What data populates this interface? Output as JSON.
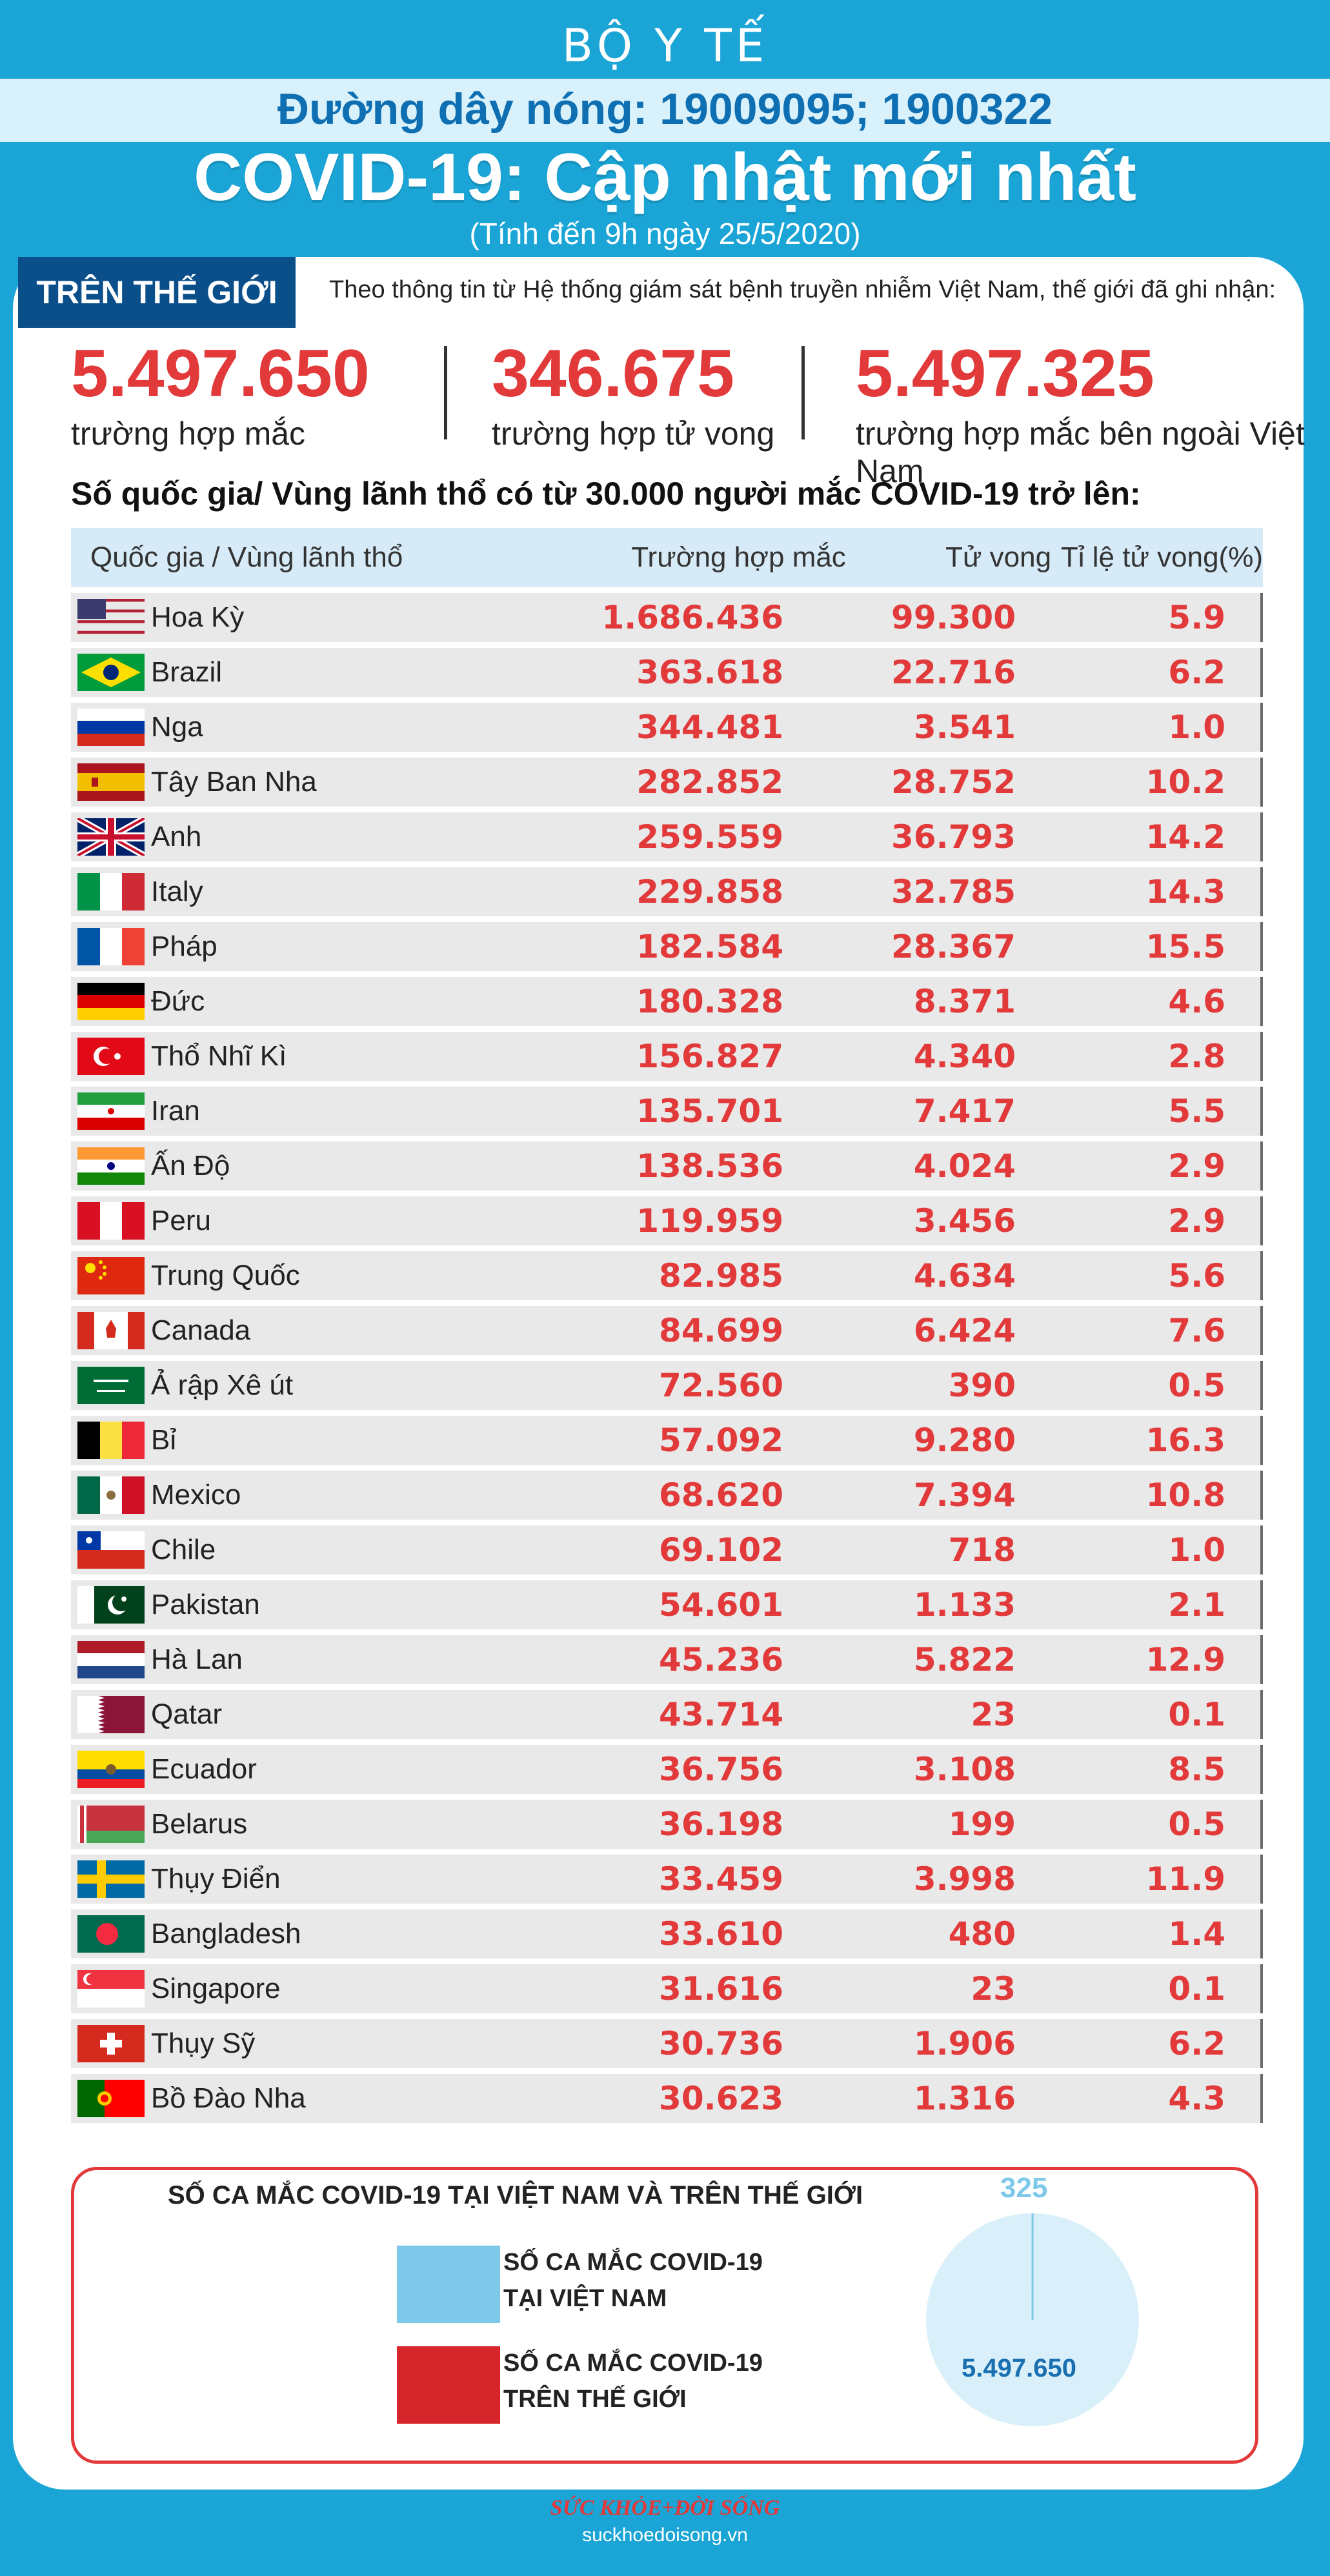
{
  "header": {
    "brand": "BỘ Y TẾ",
    "hotline": "Đường dây nóng: 19009095; 1900322",
    "title": "COVID-19: Cập nhật mới nhất",
    "date_note": "(Tính đến 9h ngày 25/5/2020)"
  },
  "world": {
    "tag": "TRÊN THẾ GIỚI",
    "intro": "Theo thông tin từ Hệ thống giám sát bệnh truyền nhiễm Việt Nam, thế giới đã ghi nhận:",
    "stats": [
      {
        "value": "5.497.650",
        "label": "trường hợp mắc"
      },
      {
        "value": "346.675",
        "label": "trường hợp tử vong"
      },
      {
        "value": "5.497.325",
        "label": "trường hợp  mắc bên ngoài Việt Nam"
      }
    ]
  },
  "table_heading": "Số quốc gia/ Vùng lãnh thổ có từ 30.000 người  mắc COVID-19 trở lên:",
  "chart_data": [
    {
      "type": "table",
      "columns": [
        "Quốc gia / Vùng lãnh thổ",
        "Trường hợp mắc",
        "Tử vong",
        "Tỉ lệ tử vong(%)"
      ],
      "rows": [
        {
          "flag": "us-flag",
          "name": "Hoa Kỳ",
          "cases": "1.686.436",
          "deaths": "99.300",
          "rate": "5.9"
        },
        {
          "flag": "brazil-flag",
          "name": "Brazil",
          "cases": "363.618",
          "deaths": "22.716",
          "rate": "6.2"
        },
        {
          "flag": "russia-flag",
          "name": "Nga",
          "cases": "344.481",
          "deaths": "3.541",
          "rate": "1.0"
        },
        {
          "flag": "spain-flag",
          "name": "Tây Ban Nha",
          "cases": "282.852",
          "deaths": "28.752",
          "rate": "10.2"
        },
        {
          "flag": "uk-flag",
          "name": "Anh",
          "cases": "259.559",
          "deaths": "36.793",
          "rate": "14.2"
        },
        {
          "flag": "italy-flag",
          "name": "Italy",
          "cases": "229.858",
          "deaths": "32.785",
          "rate": "14.3"
        },
        {
          "flag": "france-flag",
          "name": "Pháp",
          "cases": "182.584",
          "deaths": "28.367",
          "rate": "15.5"
        },
        {
          "flag": "germany-flag",
          "name": "Đức",
          "cases": "180.328",
          "deaths": "8.371",
          "rate": "4.6"
        },
        {
          "flag": "turkey-flag",
          "name": "Thổ Nhĩ Kì",
          "cases": "156.827",
          "deaths": "4.340",
          "rate": "2.8"
        },
        {
          "flag": "iran-flag",
          "name": "Iran",
          "cases": "135.701",
          "deaths": "7.417",
          "rate": "5.5"
        },
        {
          "flag": "india-flag",
          "name": "Ấn Độ",
          "cases": "138.536",
          "deaths": "4.024",
          "rate": "2.9"
        },
        {
          "flag": "peru-flag",
          "name": "Peru",
          "cases": "119.959",
          "deaths": "3.456",
          "rate": "2.9"
        },
        {
          "flag": "china-flag",
          "name": "Trung Quốc",
          "cases": "82.985",
          "deaths": "4.634",
          "rate": "5.6"
        },
        {
          "flag": "canada-flag",
          "name": "Canada",
          "cases": "84.699",
          "deaths": "6.424",
          "rate": "7.6"
        },
        {
          "flag": "saudi-flag",
          "name": "Ả rập Xê út",
          "cases": "72.560",
          "deaths": "390",
          "rate": "0.5"
        },
        {
          "flag": "belgium-flag",
          "name": "Bỉ",
          "cases": "57.092",
          "deaths": "9.280",
          "rate": "16.3"
        },
        {
          "flag": "mexico-flag",
          "name": "Mexico",
          "cases": "68.620",
          "deaths": "7.394",
          "rate": "10.8"
        },
        {
          "flag": "chile-flag",
          "name": "Chile",
          "cases": "69.102",
          "deaths": "718",
          "rate": "1.0"
        },
        {
          "flag": "pakistan-flag",
          "name": "Pakistan",
          "cases": "54.601",
          "deaths": "1.133",
          "rate": "2.1"
        },
        {
          "flag": "netherlands-flag",
          "name": "Hà Lan",
          "cases": "45.236",
          "deaths": "5.822",
          "rate": "12.9"
        },
        {
          "flag": "qatar-flag",
          "name": "Qatar",
          "cases": "43.714",
          "deaths": "23",
          "rate": "0.1"
        },
        {
          "flag": "ecuador-flag",
          "name": "Ecuador",
          "cases": "36.756",
          "deaths": "3.108",
          "rate": "8.5"
        },
        {
          "flag": "belarus-flag",
          "name": "Belarus",
          "cases": "36.198",
          "deaths": "199",
          "rate": "0.5"
        },
        {
          "flag": "sweden-flag",
          "name": "Thụy Điển",
          "cases": "33.459",
          "deaths": "3.998",
          "rate": "11.9"
        },
        {
          "flag": "bangladesh-flag",
          "name": "Bangladesh",
          "cases": "33.610",
          "deaths": "480",
          "rate": "1.4"
        },
        {
          "flag": "singapore-flag",
          "name": "Singapore",
          "cases": "31.616",
          "deaths": "23",
          "rate": "0.1"
        },
        {
          "flag": "switzerland-flag",
          "name": "Thụy Sỹ",
          "cases": "30.736",
          "deaths": "1.906",
          "rate": "6.2"
        },
        {
          "flag": "portugal-flag",
          "name": "Bồ Đào Nha",
          "cases": "30.623",
          "deaths": "1.316",
          "rate": "4.3"
        }
      ]
    },
    {
      "type": "pie",
      "title": "SỐ CA MẮC COVID-19 TẠI VIỆT NAM VÀ TRÊN THẾ GIỚI",
      "slices": [
        {
          "label": "SỐ CA MẮC COVID-19 TẠI VIỆT NAM",
          "value": 325,
          "display": "325",
          "color": "#7ec8ea"
        },
        {
          "label": "SỐ CA MẮC COVID-19 TRÊN THẾ GIỚI",
          "value": 5497650,
          "display": "5.497.650",
          "color": "#d9f0fa"
        }
      ],
      "legend_colors": [
        "#7ec8ea",
        "#d7262b"
      ]
    }
  ],
  "footer": {
    "logo": "SỨC KHỎE+ĐỜI SỐNG",
    "site": "suckhoedoisong.vn"
  }
}
